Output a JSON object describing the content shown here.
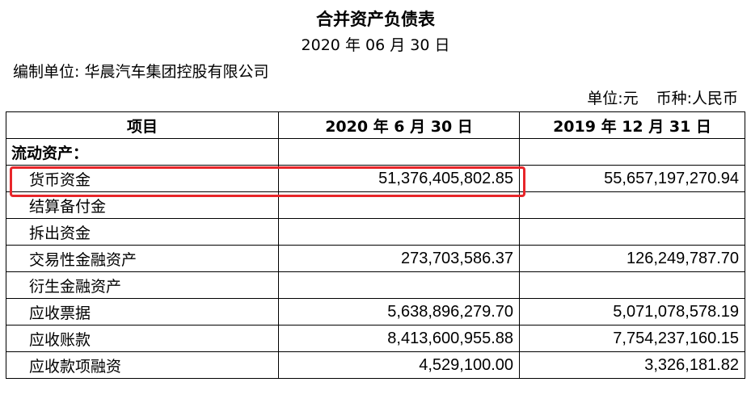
{
  "header": {
    "title": "合并资产负债表",
    "date": "2020 年 06 月 30 日",
    "company": "编制单位: 华晨汽车集团控股有限公司",
    "unit": "单位:元",
    "currency": "币种:人民币"
  },
  "table": {
    "columns": [
      "项目",
      "2020 年 6 月 30 日",
      "2019 年 12 月 31 日"
    ],
    "section": "流动资产：",
    "rows": [
      {
        "name": "货币资金",
        "v2020": "51,376,405,802.85",
        "v2019": "55,657,197,270.94"
      },
      {
        "name": "结算备付金",
        "v2020": "",
        "v2019": ""
      },
      {
        "name": "拆出资金",
        "v2020": "",
        "v2019": ""
      },
      {
        "name": "交易性金融资产",
        "v2020": "273,703,586.37",
        "v2019": "126,249,787.70"
      },
      {
        "name": "衍生金融资产",
        "v2020": "",
        "v2019": ""
      },
      {
        "name": "应收票据",
        "v2020": "5,638,896,279.70",
        "v2019": "5,071,078,578.19"
      },
      {
        "name": "应收账款",
        "v2020": "8,413,600,955.88",
        "v2019": "7,754,237,160.15"
      },
      {
        "name": "应收款项融资",
        "v2020": "4,529,100.00",
        "v2019": "3,326,181.82"
      }
    ]
  },
  "highlight_color": "#e8262a"
}
